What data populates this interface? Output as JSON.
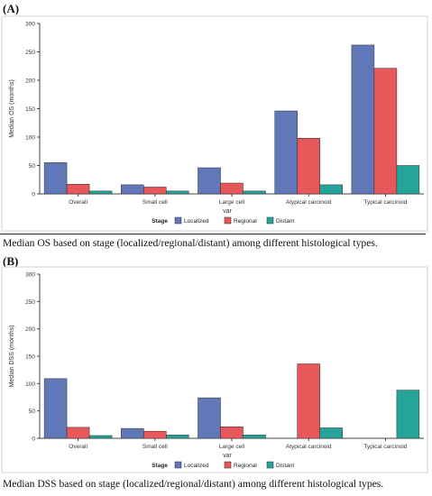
{
  "panels": [
    {
      "label": "(A)",
      "caption": "Median OS based on stage (localized/regional/distant) among different histological types."
    },
    {
      "label": "(B)",
      "caption": "Median DSS based on stage (localized/regional/distant) among different histological types."
    }
  ],
  "colors": {
    "Localized": "#6178b8",
    "Regional": "#e8575a",
    "Distant": "#26a49a"
  },
  "chart_data": [
    {
      "type": "bar",
      "categories": [
        "Overall",
        "Small cell",
        "Large cell",
        "Atypical carcinoid",
        "Typical carcinoid"
      ],
      "series": [
        {
          "name": "Localized",
          "values": [
            55,
            16,
            46,
            146,
            262
          ]
        },
        {
          "name": "Regional",
          "values": [
            17,
            12,
            19,
            98,
            221
          ]
        },
        {
          "name": "Distant",
          "values": [
            5,
            5,
            5,
            16,
            50
          ]
        }
      ],
      "xlabel": "var",
      "ylabel": "Median OS (months)",
      "ylim": [
        0,
        300
      ],
      "yticks": [
        0,
        50,
        100,
        150,
        200,
        250,
        300
      ],
      "legend_title": "Stage",
      "legend_position": "bottom",
      "grid": false
    },
    {
      "type": "bar",
      "categories": [
        "Overall",
        "Small cell",
        "Large cell",
        "Atypical carcinoid",
        "Typical carcinoid"
      ],
      "series": [
        {
          "name": "Localized",
          "values": [
            109,
            18,
            74,
            null,
            null
          ]
        },
        {
          "name": "Regional",
          "values": [
            20,
            13,
            21,
            136,
            null
          ]
        },
        {
          "name": "Distant",
          "values": [
            5,
            6,
            6,
            19,
            88
          ]
        }
      ],
      "xlabel": "var",
      "ylabel": "Median DSS (months)",
      "ylim": [
        0,
        300
      ],
      "yticks": [
        0,
        50,
        100,
        150,
        200,
        250,
        300
      ],
      "legend_title": "Stage",
      "legend_position": "bottom",
      "grid": false
    }
  ]
}
